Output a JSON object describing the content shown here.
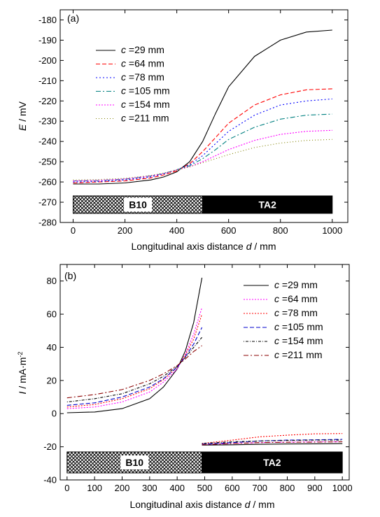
{
  "chart_data": [
    {
      "panel": "(a)",
      "type": "line",
      "xlabel": {
        "main": "Longitudinal axis distance ",
        "var": "d",
        "unit": " / mm"
      },
      "ylabel": {
        "var": "E",
        "unit": " / mV"
      },
      "xlim": [
        -50,
        1060
      ],
      "ylim": [
        -280,
        -175
      ],
      "xticks": [
        0,
        200,
        400,
        600,
        800,
        1000
      ],
      "yticks": [
        -280,
        -270,
        -260,
        -250,
        -240,
        -230,
        -220,
        -210,
        -200,
        -190,
        -180
      ],
      "legend_position": "upper-left",
      "materials": [
        {
          "label": "B10",
          "range": [
            0,
            500
          ],
          "style": "hatched"
        },
        {
          "label": "TA2",
          "range": [
            500,
            1000
          ],
          "style": "solid"
        }
      ],
      "series": [
        {
          "name": "=29 mm",
          "prefix": "c",
          "color": "#000000",
          "dash": "",
          "x": [
            0,
            100,
            200,
            300,
            350,
            400,
            450,
            500,
            550,
            600,
            700,
            800,
            900,
            1000
          ],
          "y": [
            -261,
            -261,
            -260.5,
            -259,
            -257.5,
            -255,
            -250,
            -240,
            -226,
            -213,
            -198,
            -190,
            -186,
            -185
          ]
        },
        {
          "name": "=64 mm",
          "prefix": "c",
          "color": "#ff0000",
          "dash": "6,3",
          "x": [
            0,
            100,
            200,
            300,
            350,
            400,
            450,
            500,
            550,
            600,
            700,
            800,
            900,
            1000
          ],
          "y": [
            -260.5,
            -260,
            -259.5,
            -258,
            -256.5,
            -254.5,
            -251,
            -245,
            -238,
            -231,
            -222,
            -217,
            -214.5,
            -214
          ]
        },
        {
          "name": "=78 mm",
          "prefix": "c",
          "color": "#0000ff",
          "dash": "2,3",
          "x": [
            0,
            100,
            200,
            300,
            350,
            400,
            450,
            500,
            550,
            600,
            700,
            800,
            900,
            1000
          ],
          "y": [
            -260,
            -259.8,
            -259,
            -257.5,
            -256,
            -254,
            -251.5,
            -247,
            -241,
            -235,
            -227,
            -222,
            -220,
            -219
          ]
        },
        {
          "name": "=105 mm",
          "prefix": "c",
          "color": "#008080",
          "dash": "7,3,2,3",
          "x": [
            0,
            100,
            200,
            300,
            350,
            400,
            450,
            500,
            550,
            600,
            700,
            800,
            900,
            1000
          ],
          "y": [
            -259.5,
            -259.3,
            -258.6,
            -257,
            -255.8,
            -254,
            -252,
            -248.5,
            -244,
            -239,
            -233,
            -229,
            -227,
            -226.5
          ]
        },
        {
          "name": "=154 mm",
          "prefix": "c",
          "color": "#ff00ff",
          "dash": "2,2",
          "x": [
            0,
            100,
            200,
            300,
            350,
            400,
            450,
            500,
            550,
            600,
            700,
            800,
            900,
            1000
          ],
          "y": [
            -259.5,
            -259.2,
            -258.5,
            -257,
            -255.8,
            -254,
            -252.5,
            -250,
            -247,
            -244,
            -239.5,
            -236.5,
            -235,
            -234.5
          ]
        },
        {
          "name": "=211 mm",
          "prefix": "c",
          "color": "#808000",
          "dash": "1,3",
          "x": [
            0,
            100,
            200,
            300,
            350,
            400,
            450,
            500,
            550,
            600,
            700,
            800,
            900,
            1000
          ],
          "y": [
            -259,
            -258.8,
            -258.2,
            -256.8,
            -255.6,
            -254,
            -252.5,
            -250.5,
            -248.5,
            -246.5,
            -243,
            -240.8,
            -239.5,
            -239
          ]
        }
      ]
    },
    {
      "panel": "(b)",
      "type": "line",
      "xlabel": {
        "main": "Longitudinal axis distance ",
        "var": "d",
        "unit": " / mm"
      },
      "ylabel": {
        "var": "I",
        "unit": " / mA·m",
        "sup": "-2"
      },
      "xlim": [
        -25,
        1025
      ],
      "ylim": [
        -40,
        90
      ],
      "xticks": [
        0,
        100,
        200,
        300,
        400,
        500,
        600,
        700,
        800,
        900,
        1000
      ],
      "yticks": [
        -40,
        -20,
        0,
        20,
        40,
        60,
        80
      ],
      "legend_position": "upper-right",
      "materials": [
        {
          "label": "B10",
          "range": [
            0,
            490
          ],
          "style": "hatched"
        },
        {
          "label": "TA2",
          "range": [
            490,
            1000
          ],
          "style": "solid"
        }
      ],
      "series": [
        {
          "name": "=29 mm",
          "prefix": "c",
          "color": "#000000",
          "dash": "",
          "x": [
            0,
            100,
            200,
            300,
            350,
            400,
            430,
            460,
            490
          ],
          "y": [
            0.5,
            1,
            3,
            9,
            16,
            27,
            38,
            55,
            82
          ],
          "x2": [
            490,
            600,
            700,
            800,
            900,
            1000
          ],
          "y2": [
            -19,
            -18.8,
            -18.5,
            -18.3,
            -18.2,
            -18.1
          ]
        },
        {
          "name": "=64 mm",
          "prefix": "c",
          "color": "#ff00ff",
          "dash": "2,2",
          "x": [
            0,
            100,
            200,
            300,
            350,
            400,
            430,
            460,
            490
          ],
          "y": [
            3,
            4,
            7,
            13,
            19,
            27,
            36,
            48,
            64
          ],
          "x2": [
            490,
            600,
            700,
            800,
            900,
            1000
          ],
          "y2": [
            -18.5,
            -18,
            -17.5,
            -17.2,
            -17,
            -17
          ]
        },
        {
          "name": "=78 mm",
          "prefix": "c",
          "color": "#ff0000",
          "dash": "2,2",
          "x": [
            0,
            100,
            200,
            300,
            350,
            400,
            430,
            460,
            490
          ],
          "y": [
            4,
            5.5,
            9,
            15,
            20.5,
            28,
            35.5,
            45,
            60
          ],
          "x2": [
            490,
            600,
            700,
            800,
            900,
            1000
          ],
          "y2": [
            -18,
            -16,
            -14,
            -13,
            -12.2,
            -12
          ]
        },
        {
          "name": "=105 mm",
          "prefix": "c",
          "color": "#0000cd",
          "dash": "6,3",
          "x": [
            0,
            100,
            200,
            300,
            350,
            400,
            430,
            460,
            490
          ],
          "y": [
            5,
            6.5,
            10,
            16,
            21,
            28,
            34.5,
            42,
            52
          ],
          "x2": [
            490,
            600,
            700,
            800,
            900,
            1000
          ],
          "y2": [
            -18.5,
            -17.5,
            -16.5,
            -16,
            -15.8,
            -15.5
          ]
        },
        {
          "name": "=154 mm",
          "prefix": "c",
          "color": "#000000",
          "dash": "1,2,4,2",
          "x": [
            0,
            100,
            200,
            300,
            350,
            400,
            430,
            460,
            490
          ],
          "y": [
            7,
            9,
            12,
            18,
            22.5,
            28.5,
            34,
            40,
            46
          ],
          "x2": [
            490,
            600,
            700,
            800,
            900,
            1000
          ],
          "y2": [
            -18,
            -17,
            -16.5,
            -16.2,
            -16,
            -16
          ]
        },
        {
          "name": "=211 mm",
          "prefix": "c",
          "color": "#8b0000",
          "dash": "7,3,2,3",
          "x": [
            0,
            100,
            200,
            300,
            350,
            400,
            430,
            460,
            490
          ],
          "y": [
            9.5,
            11.5,
            14.5,
            20,
            24,
            29,
            33,
            37.5,
            41
          ],
          "x2": [
            490,
            600,
            700,
            800,
            900,
            1000
          ],
          "y2": [
            -18.8,
            -18,
            -17.5,
            -17.3,
            -17.2,
            -17
          ]
        }
      ]
    }
  ]
}
